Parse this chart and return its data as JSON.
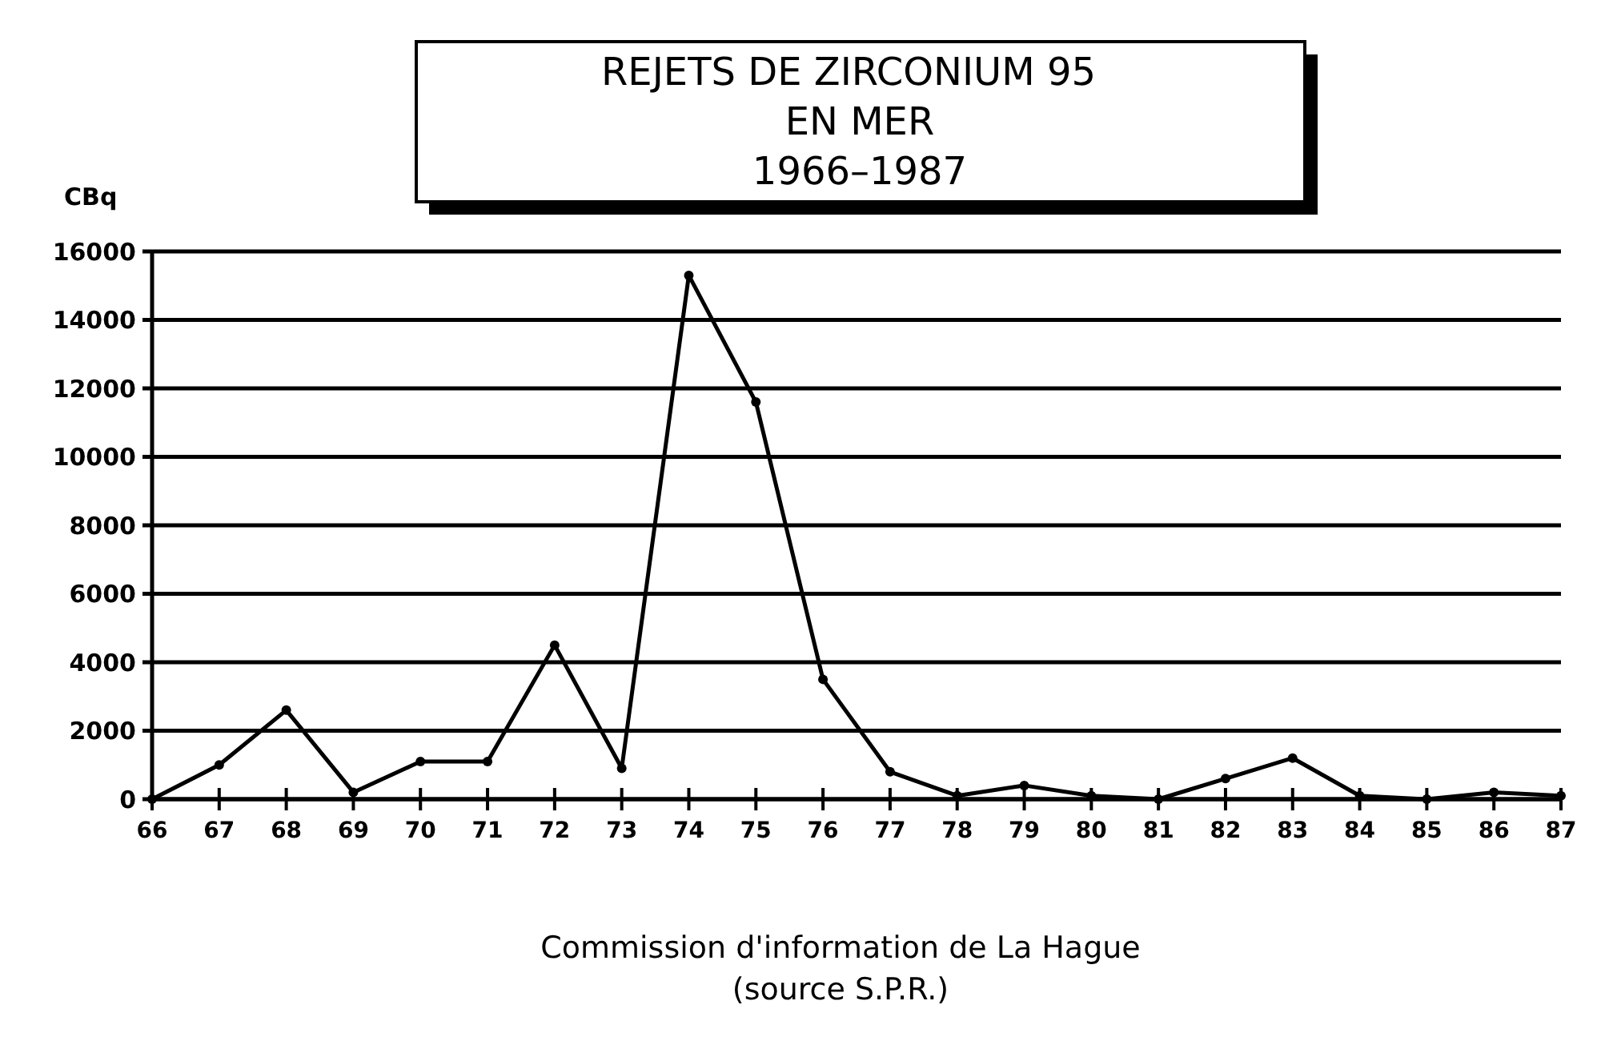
{
  "chart_data": {
    "type": "line",
    "title": "REJETS DE ZIRCONIUM 95\nEN MER\n1966–1987",
    "ylabel": "CBq",
    "categories": [
      "66",
      "67",
      "68",
      "69",
      "70",
      "71",
      "72",
      "73",
      "74",
      "75",
      "76",
      "77",
      "78",
      "79",
      "80",
      "81",
      "82",
      "83",
      "84",
      "85",
      "86",
      "87"
    ],
    "series": [
      {
        "color": "#000000",
        "values": [
          0,
          1000,
          2600,
          200,
          1100,
          1100,
          4500,
          900,
          15300,
          11600,
          3500,
          800,
          100,
          400,
          100,
          0,
          600,
          1200,
          100,
          0,
          200,
          100
        ]
      }
    ],
    "ylim": [
      0,
      16000
    ],
    "yticks": [
      0,
      2000,
      4000,
      6000,
      8000,
      10000,
      12000,
      14000,
      16000
    ],
    "grid": "y",
    "marker": "circle",
    "line_style": "solid",
    "annotations": [
      "Commission d'information de La Hague",
      "(source S.P.R.)"
    ]
  }
}
